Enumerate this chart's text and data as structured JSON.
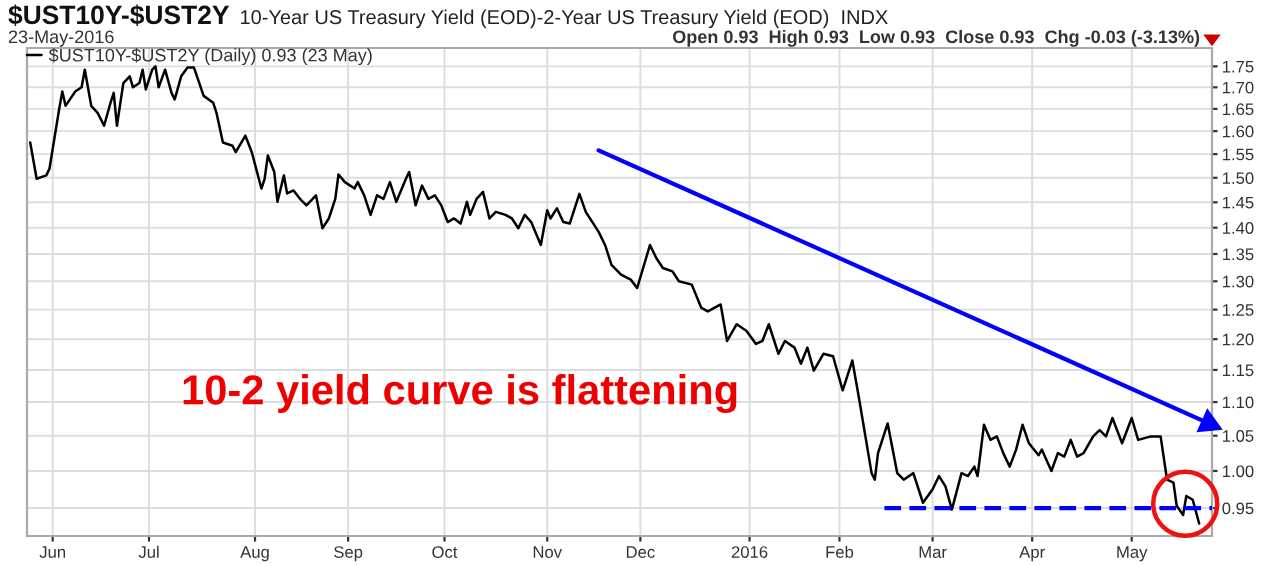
{
  "chart_data": {
    "type": "line",
    "title": "$UST10Y-$UST2Y",
    "subtitle": "10-Year US Treasury Yield (EOD)-2-Year US Treasury Yield (EOD)  INDX",
    "annotations": [
      "23-May-2016",
      "Open 0.93  High 0.93  Low 0.93  Close 0.93  Chg -0.03 (-3.13%)",
      "10-2 yield curve is flattening"
    ],
    "log": true,
    "grid": true,
    "legend": "top left",
    "xlim": [
      "2015-05-24",
      "2016-05-27"
    ],
    "xticks": [
      {
        "value": "2015-06-01",
        "label": "Jun"
      },
      {
        "value": "2015-07-01",
        "label": "Jul"
      },
      {
        "value": "2015-08-03",
        "label": "Aug"
      },
      {
        "value": "2015-09-01",
        "label": "Sep"
      },
      {
        "value": "2015-10-01",
        "label": "Oct"
      },
      {
        "value": "2015-11-02",
        "label": "Nov"
      },
      {
        "value": "2015-12-01",
        "label": "Dec"
      },
      {
        "value": "2016-01-04",
        "label": "2016"
      },
      {
        "value": "2016-02-01",
        "label": "Feb"
      },
      {
        "value": "2016-03-01",
        "label": "Mar"
      },
      {
        "value": "2016-04-01",
        "label": "Apr"
      },
      {
        "value": "2016-05-02",
        "label": "May"
      }
    ],
    "ylim": [
      0.914,
      1.795
    ],
    "yticks": [
      0.95,
      {
        "value": 1.0,
        "label": "1.00"
      },
      1.05,
      {
        "value": 1.1,
        "label": "1.10"
      },
      1.15,
      {
        "value": 1.2,
        "label": "1.20"
      },
      1.25,
      {
        "value": 1.3,
        "label": "1.30"
      },
      1.35,
      {
        "value": 1.4,
        "label": "1.40"
      },
      1.45,
      {
        "value": 1.5,
        "label": "1.50"
      },
      1.55,
      {
        "value": 1.6,
        "label": "1.60"
      },
      1.65,
      {
        "value": 1.7,
        "label": "1.70"
      },
      1.75
    ],
    "series": [
      {
        "name": "$UST10Y-$UST2Y (Daily) 0.93 (23 May)",
        "color": "#000000",
        "line_style": "solid",
        "x": [
          "2015-05-25",
          "2015-05-27",
          "2015-05-30",
          "2015-05-31",
          "2015-06-03",
          "2015-06-04",
          "2015-06-05",
          "2015-06-08",
          "2015-06-10",
          "2015-06-11",
          "2015-06-13",
          "2015-06-15",
          "2015-06-17",
          "2015-06-19",
          "2015-06-20",
          "2015-06-21",
          "2015-06-23",
          "2015-06-25",
          "2015-06-26",
          "2015-06-28",
          "2015-06-29",
          "2015-06-30",
          "2015-07-02",
          "2015-07-03",
          "2015-07-04",
          "2015-07-06",
          "2015-07-08",
          "2015-07-09",
          "2015-07-11",
          "2015-07-13",
          "2015-07-15",
          "2015-07-18",
          "2015-07-21",
          "2015-07-22",
          "2015-07-24",
          "2015-07-27",
          "2015-07-28",
          "2015-07-31",
          "2015-08-02",
          "2015-08-05",
          "2015-08-06",
          "2015-08-07",
          "2015-08-09",
          "2015-08-10",
          "2015-08-12",
          "2015-08-13",
          "2015-08-15",
          "2015-08-17",
          "2015-08-19",
          "2015-08-22",
          "2015-08-24",
          "2015-08-26",
          "2015-08-28",
          "2015-08-29",
          "2015-08-31",
          "2015-09-03",
          "2015-09-04",
          "2015-09-06",
          "2015-09-08",
          "2015-09-10",
          "2015-09-12",
          "2015-09-14",
          "2015-09-16",
          "2015-09-19",
          "2015-09-20",
          "2015-09-22",
          "2015-09-24",
          "2015-09-26",
          "2015-09-28",
          "2015-09-30",
          "2015-10-02",
          "2015-10-04",
          "2015-10-06",
          "2015-10-08",
          "2015-10-09",
          "2015-10-11",
          "2015-10-13",
          "2015-10-15",
          "2015-10-17",
          "2015-10-20",
          "2015-10-22",
          "2015-10-24",
          "2015-10-26",
          "2015-10-28",
          "2015-10-31",
          "2015-11-02",
          "2015-11-03",
          "2015-11-05",
          "2015-11-07",
          "2015-11-09",
          "2015-11-12",
          "2015-11-14",
          "2015-11-18",
          "2015-11-20",
          "2015-11-22",
          "2015-11-25",
          "2015-11-28",
          "2015-11-30",
          "2015-12-04",
          "2015-12-06",
          "2015-12-08",
          "2015-12-11",
          "2015-12-13",
          "2015-12-17",
          "2015-12-20",
          "2015-12-22",
          "2015-12-26",
          "2015-12-28",
          "2015-12-31",
          "2016-01-03",
          "2016-01-06",
          "2016-01-08",
          "2016-01-10",
          "2016-01-13",
          "2016-01-15",
          "2016-01-18",
          "2016-01-20",
          "2016-01-22",
          "2016-01-24",
          "2016-01-27",
          "2016-01-30",
          "2016-02-02",
          "2016-02-05",
          "2016-02-07",
          "2016-02-11",
          "2016-02-12",
          "2016-02-13",
          "2016-02-16",
          "2016-02-19",
          "2016-02-21",
          "2016-02-24",
          "2016-02-27",
          "2016-03-01",
          "2016-03-03",
          "2016-03-05",
          "2016-03-07",
          "2016-03-10",
          "2016-03-12",
          "2016-03-14",
          "2016-03-15",
          "2016-03-17",
          "2016-03-19",
          "2016-03-21",
          "2016-03-23",
          "2016-03-25",
          "2016-03-27",
          "2016-03-29",
          "2016-03-31",
          "2016-04-03",
          "2016-04-04",
          "2016-04-07",
          "2016-04-09",
          "2016-04-11",
          "2016-04-13",
          "2016-04-15",
          "2016-04-17",
          "2016-04-20",
          "2016-04-22",
          "2016-04-24",
          "2016-04-26",
          "2016-04-29",
          "2016-05-02",
          "2016-05-04",
          "2016-05-08",
          "2016-05-11",
          "2016-05-13",
          "2016-05-15",
          "2016-05-16",
          "2016-05-18",
          "2016-05-19",
          "2016-05-21",
          "2016-05-23"
        ],
        "values": [
          1.575,
          1.498,
          1.505,
          1.519,
          1.649,
          1.69,
          1.657,
          1.69,
          1.7,
          1.742,
          1.657,
          1.641,
          1.612,
          1.664,
          1.687,
          1.612,
          1.71,
          1.726,
          1.7,
          1.71,
          1.742,
          1.695,
          1.742,
          1.75,
          1.7,
          1.742,
          1.687,
          1.672,
          1.726,
          1.747,
          1.747,
          1.68,
          1.664,
          1.641,
          1.575,
          1.568,
          1.554,
          1.59,
          1.554,
          1.478,
          1.498,
          1.547,
          1.512,
          1.451,
          1.505,
          1.468,
          1.474,
          1.457,
          1.444,
          1.464,
          1.399,
          1.418,
          1.457,
          1.507,
          1.491,
          1.478,
          1.491,
          1.464,
          1.425,
          1.464,
          1.457,
          1.491,
          1.451,
          1.498,
          1.512,
          1.444,
          1.484,
          1.457,
          1.464,
          1.444,
          1.411,
          1.418,
          1.408,
          1.451,
          1.425,
          1.457,
          1.471,
          1.418,
          1.431,
          1.425,
          1.418,
          1.399,
          1.425,
          1.411,
          1.367,
          1.434,
          1.418,
          1.438,
          1.411,
          1.408,
          1.467,
          1.431,
          1.392,
          1.367,
          1.33,
          1.312,
          1.303,
          1.288,
          1.367,
          1.342,
          1.324,
          1.318,
          1.3,
          1.294,
          1.253,
          1.247,
          1.259,
          1.197,
          1.225,
          1.214,
          1.192,
          1.197,
          1.225,
          1.176,
          1.197,
          1.186,
          1.16,
          1.186,
          1.149,
          1.176,
          1.172,
          1.118,
          1.165,
          1.108,
          0.997,
          0.988,
          1.025,
          1.068,
          0.997,
          0.988,
          0.997,
          0.957,
          0.975,
          0.993,
          0.979,
          0.948,
          0.997,
          0.993,
          1.006,
          0.993,
          1.066,
          1.044,
          1.049,
          1.025,
          1.006,
          1.03,
          1.066,
          1.039,
          1.022,
          1.03,
          1.0,
          1.025,
          1.02,
          1.044,
          1.02,
          1.025,
          1.049,
          1.058,
          1.049,
          1.076,
          1.039,
          1.076,
          1.044,
          1.049,
          1.049,
          0.988,
          0.984,
          0.953,
          0.941,
          0.966,
          0.961,
          0.93
        ]
      },
      {
        "color": "#0000ff",
        "line_style": "dashed",
        "x": [
          "2016-02-15",
          "2016-05-27"
        ],
        "values": [
          0.95,
          0.95
        ]
      },
      {
        "color": "#0000ff",
        "line_style": "solid",
        "marker": "triangle",
        "x": [
          "2015-11-18",
          "2016-05-26"
        ],
        "values": [
          1.558,
          1.068
        ]
      }
    ]
  }
}
